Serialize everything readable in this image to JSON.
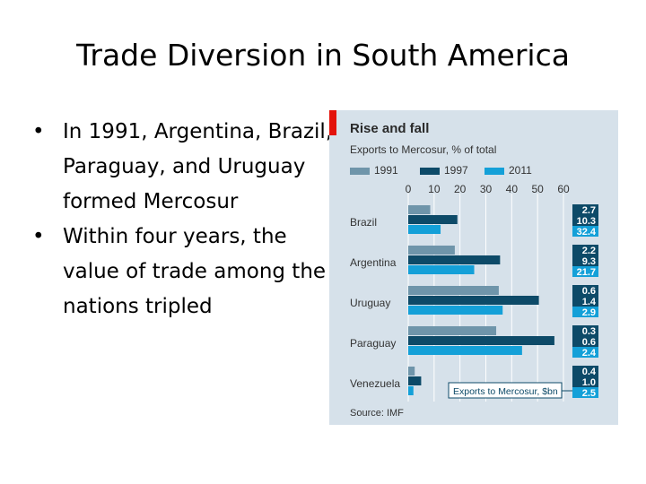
{
  "slide": {
    "title": "Trade Diversion in South America",
    "bullets": [
      "In 1991, Argentina, Brazil, Paraguay, and Uruguay formed Mercosur",
      "Within four years, the value of trade among the nations tripled"
    ]
  },
  "chart_data": {
    "type": "bar",
    "orientation": "horizontal",
    "title": "Rise and fall",
    "subtitle": "Exports to Mercosur, % of total",
    "source": "Source: IMF",
    "xlim": [
      0,
      60
    ],
    "x_ticks": [
      0,
      10,
      20,
      30,
      40,
      50,
      60
    ],
    "grid": true,
    "legend_position": "top",
    "categories": [
      "Brazil",
      "Argentina",
      "Uruguay",
      "Paraguay",
      "Venezuela"
    ],
    "series": [
      {
        "name": "1991",
        "color": "#6f95aa",
        "values": [
          8.5,
          18,
          35,
          34,
          2.5
        ]
      },
      {
        "name": "1997",
        "color": "#0d4a68",
        "values": [
          19,
          35.5,
          50.5,
          56.5,
          5
        ]
      },
      {
        "name": "2011",
        "color": "#14a0d8",
        "values": [
          12.5,
          25.5,
          36.5,
          44,
          2
        ]
      }
    ],
    "value_boxes_label": "Exports to Mercosur, $bn",
    "value_boxes": [
      [
        "2.7",
        "10.3",
        "32.4"
      ],
      [
        "2.2",
        "9.3",
        "21.7"
      ],
      [
        "0.6",
        "1.4",
        "2.9"
      ],
      [
        "0.3",
        "0.6",
        "2.4"
      ],
      [
        "0.4",
        "1.0",
        "2.5"
      ]
    ]
  }
}
